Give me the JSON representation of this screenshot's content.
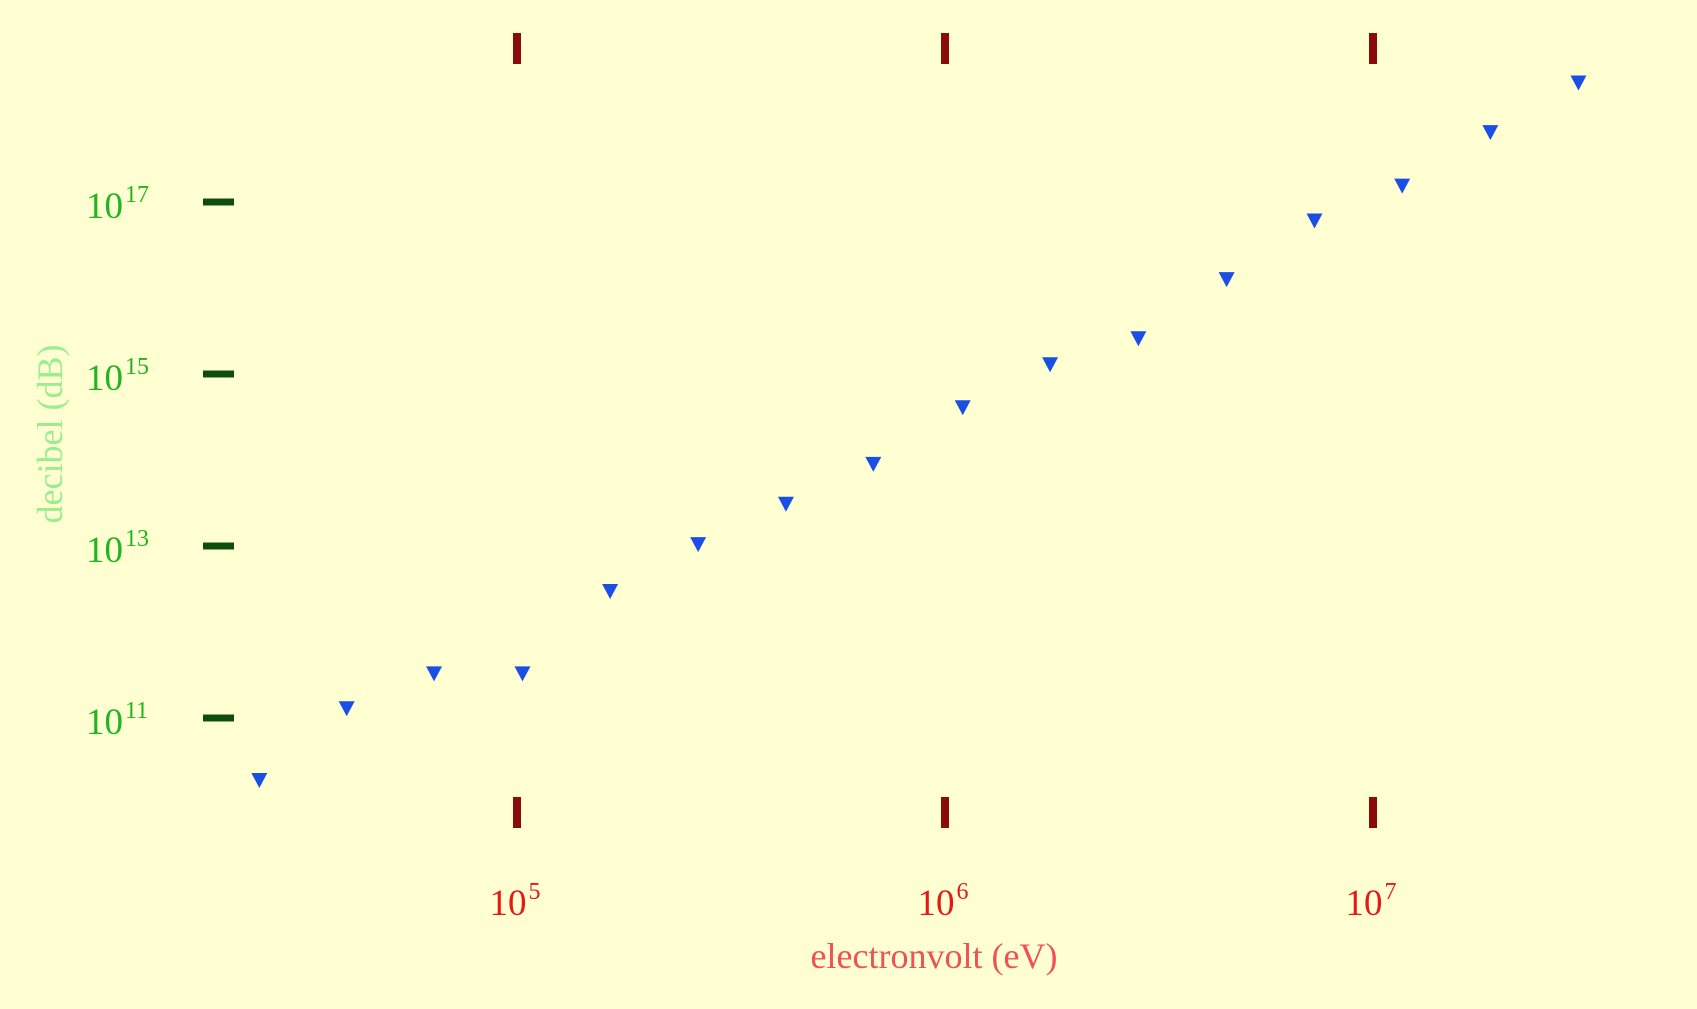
{
  "chart_data": {
    "type": "scatter",
    "title": "",
    "xlabel": "electronvolt (eV)",
    "ylabel": "decibel (dB)",
    "x_scale": "log",
    "y_scale": "log",
    "xlim": [
      22000,
      83000000
    ],
    "ylim": [
      16000000000.0,
      2.5e+18
    ],
    "grid": false,
    "legend": "none",
    "x_ticks": [
      {
        "value": 100000,
        "base": "10",
        "exp": "5"
      },
      {
        "value": 1000000,
        "base": "10",
        "exp": "6"
      },
      {
        "value": 10000000,
        "base": "10",
        "exp": "7"
      }
    ],
    "y_ticks": [
      {
        "value": 100000000000.0,
        "base": "10",
        "exp": "11"
      },
      {
        "value": 10000000000000.0,
        "base": "10",
        "exp": "13"
      },
      {
        "value": 1000000000000000.0,
        "base": "10",
        "exp": "15"
      },
      {
        "value": 1e+17,
        "base": "10",
        "exp": "17"
      }
    ],
    "marker": "triangle-down",
    "series": [
      {
        "points": [
          {
            "x": 25000,
            "y": 19000000000.0
          },
          {
            "x": 40000,
            "y": 130000000000.0
          },
          {
            "x": 64000,
            "y": 330000000000.0
          },
          {
            "x": 103000,
            "y": 330000000000.0
          },
          {
            "x": 165000,
            "y": 3000000000000.0
          },
          {
            "x": 265000,
            "y": 10500000000000.0
          },
          {
            "x": 425000,
            "y": 31000000000000.0
          },
          {
            "x": 680000,
            "y": 90000000000000.0
          },
          {
            "x": 1100000,
            "y": 410000000000000.0
          },
          {
            "x": 1760000,
            "y": 1300000000000000.0
          },
          {
            "x": 2830000,
            "y": 2600000000000000.0
          },
          {
            "x": 4550000,
            "y": 1.27e+16
          },
          {
            "x": 7300000,
            "y": 6.1e+16
          },
          {
            "x": 11700000,
            "y": 1.55e+17
          },
          {
            "x": 18800000,
            "y": 6.5e+17
          },
          {
            "x": 30200000,
            "y": 2.45e+18
          }
        ]
      }
    ],
    "colors": {
      "background": "#ffffd1",
      "marker": "#1a4fe6",
      "x_tick_mark": "#8b0a0a",
      "x_tick_label": "#e81818",
      "x_title": "#f0505a",
      "y_tick_mark": "#0f4d0f",
      "y_tick_label": "#1fb51f",
      "y_title": "#9aee8e"
    }
  }
}
